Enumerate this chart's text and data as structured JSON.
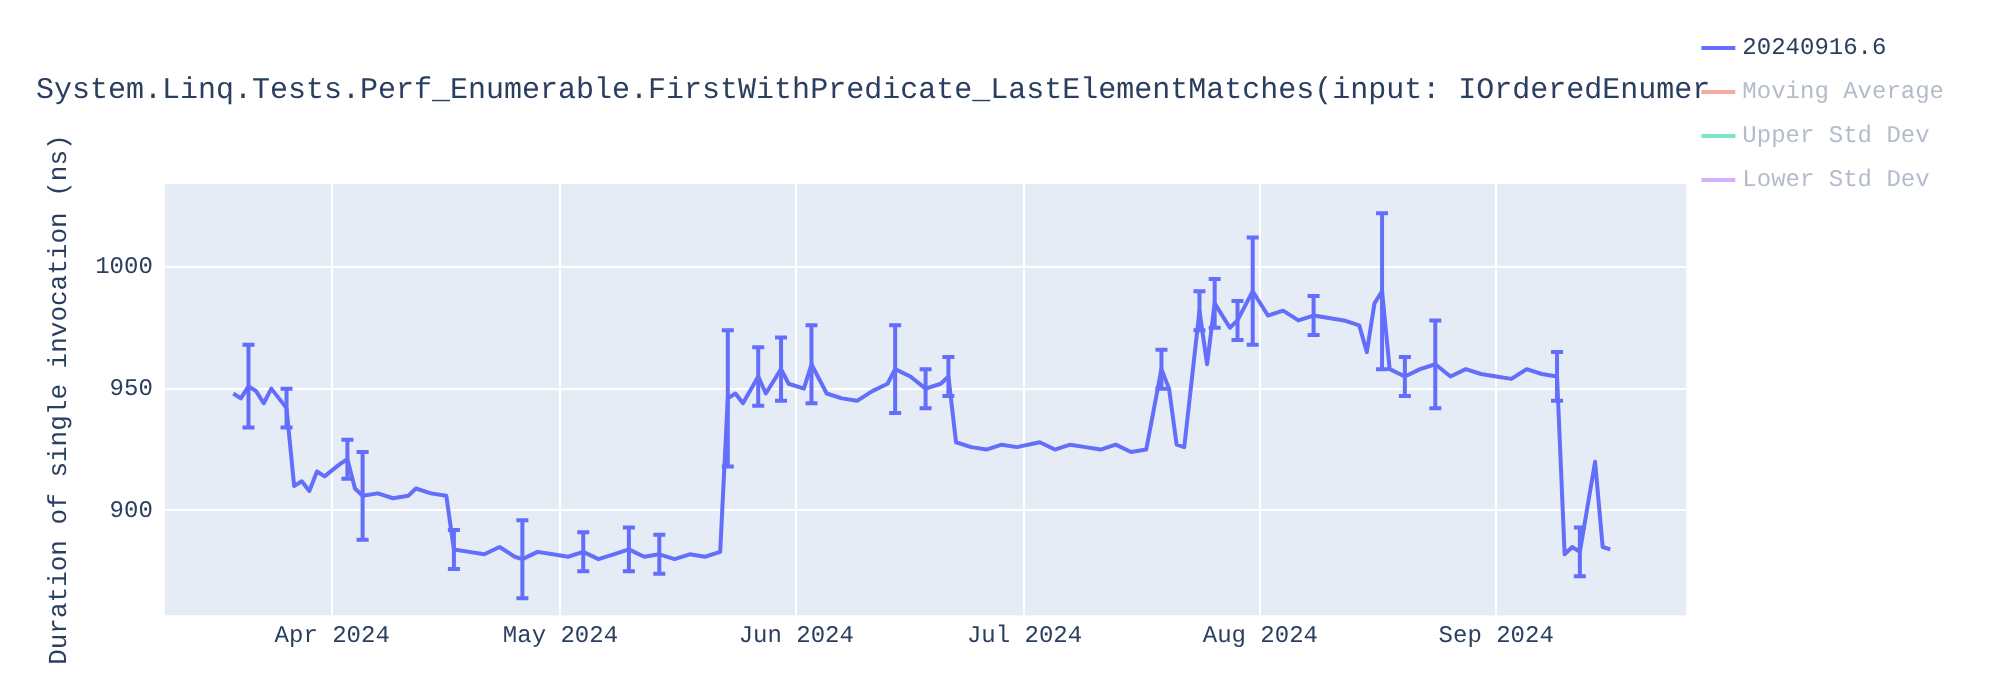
{
  "chart_data": {
    "type": "line",
    "title": "System.Linq.Tests.Perf_Enumerable.FirstWithPredicate_LastElementMatches(input: IOrderedEnumer",
    "ylabel": "Duration of single invocation (ns)",
    "x": [
      "2024-03-19",
      "2024-03-20",
      "2024-03-21",
      "2024-03-22",
      "2024-03-23",
      "2024-03-24",
      "2024-03-25",
      "2024-03-26",
      "2024-03-27",
      "2024-03-28",
      "2024-03-29",
      "2024-03-30",
      "2024-03-31",
      "2024-04-02",
      "2024-04-03",
      "2024-04-04",
      "2024-04-05",
      "2024-04-07",
      "2024-04-09",
      "2024-04-11",
      "2024-04-12",
      "2024-04-14",
      "2024-04-16",
      "2024-04-17",
      "2024-04-19",
      "2024-04-21",
      "2024-04-23",
      "2024-04-25",
      "2024-04-26",
      "2024-04-28",
      "2024-04-30",
      "2024-05-02",
      "2024-05-04",
      "2024-05-06",
      "2024-05-08",
      "2024-05-10",
      "2024-05-12",
      "2024-05-14",
      "2024-05-16",
      "2024-05-18",
      "2024-05-20",
      "2024-05-22",
      "2024-05-23",
      "2024-05-24",
      "2024-05-25",
      "2024-05-27",
      "2024-05-28",
      "2024-05-30",
      "2024-05-31",
      "2024-06-02",
      "2024-06-03",
      "2024-06-05",
      "2024-06-07",
      "2024-06-09",
      "2024-06-11",
      "2024-06-13",
      "2024-06-14",
      "2024-06-16",
      "2024-06-18",
      "2024-06-20",
      "2024-06-21",
      "2024-06-22",
      "2024-06-24",
      "2024-06-26",
      "2024-06-28",
      "2024-06-30",
      "2024-07-03",
      "2024-07-05",
      "2024-07-07",
      "2024-07-09",
      "2024-07-11",
      "2024-07-13",
      "2024-07-15",
      "2024-07-17",
      "2024-07-19",
      "2024-07-20",
      "2024-07-21",
      "2024-07-22",
      "2024-07-24",
      "2024-07-25",
      "2024-07-26",
      "2024-07-28",
      "2024-07-29",
      "2024-07-31",
      "2024-08-02",
      "2024-08-04",
      "2024-08-06",
      "2024-08-08",
      "2024-08-10",
      "2024-08-12",
      "2024-08-14",
      "2024-08-15",
      "2024-08-16",
      "2024-08-17",
      "2024-08-18",
      "2024-08-20",
      "2024-08-22",
      "2024-08-24",
      "2024-08-26",
      "2024-08-28",
      "2024-08-30",
      "2024-09-01",
      "2024-09-03",
      "2024-09-05",
      "2024-09-07",
      "2024-09-09",
      "2024-09-10",
      "2024-09-11",
      "2024-09-12",
      "2024-09-14",
      "2024-09-15",
      "2024-09-16"
    ],
    "series": [
      {
        "name": "20240916.6",
        "color": "#636efa",
        "values": [
          948,
          946,
          951,
          949,
          944,
          950,
          946,
          942,
          910,
          912,
          908,
          916,
          914,
          919,
          921,
          909,
          906,
          907,
          905,
          906,
          909,
          907,
          906,
          884,
          883,
          882,
          885,
          881,
          880,
          883,
          882,
          881,
          883,
          880,
          882,
          884,
          881,
          882,
          880,
          882,
          881,
          883,
          946,
          948,
          944,
          955,
          948,
          958,
          952,
          950,
          960,
          948,
          946,
          945,
          949,
          952,
          958,
          955,
          950,
          952,
          955,
          928,
          926,
          925,
          927,
          926,
          928,
          925,
          927,
          926,
          925,
          927,
          924,
          925,
          958,
          950,
          927,
          926,
          982,
          960,
          985,
          975,
          978,
          990,
          980,
          982,
          978,
          980,
          979,
          978,
          976,
          965,
          985,
          990,
          958,
          955,
          958,
          960,
          955,
          958,
          956,
          955,
          954,
          958,
          956,
          955,
          882,
          885,
          883,
          920,
          885,
          884
        ],
        "errors": [
          null,
          null,
          17,
          null,
          null,
          null,
          null,
          8,
          null,
          null,
          null,
          null,
          null,
          null,
          8,
          null,
          18,
          null,
          null,
          null,
          null,
          null,
          null,
          8,
          null,
          null,
          null,
          null,
          16,
          null,
          null,
          null,
          8,
          null,
          null,
          9,
          null,
          8,
          null,
          null,
          null,
          null,
          28,
          null,
          null,
          12,
          null,
          13,
          null,
          null,
          16,
          null,
          null,
          null,
          null,
          null,
          18,
          null,
          8,
          null,
          8,
          null,
          null,
          null,
          null,
          null,
          null,
          null,
          null,
          null,
          null,
          null,
          null,
          null,
          8,
          null,
          null,
          null,
          8,
          null,
          10,
          null,
          8,
          22,
          null,
          null,
          null,
          8,
          null,
          null,
          null,
          null,
          null,
          32,
          null,
          8,
          null,
          18,
          null,
          null,
          null,
          null,
          null,
          null,
          null,
          10,
          null,
          null,
          10,
          null,
          null,
          null
        ]
      },
      {
        "name": "Moving Average",
        "color": "#ef553b",
        "values": [
          null,
          null,
          null,
          null,
          null,
          null,
          null,
          null,
          null,
          null,
          null,
          null,
          null,
          null,
          null,
          null,
          null,
          null,
          null,
          null,
          null,
          null,
          null,
          null,
          null,
          null,
          null,
          null,
          null,
          null,
          null,
          null,
          null,
          null,
          null,
          null,
          null,
          null,
          null,
          null,
          null,
          null,
          null,
          null,
          null,
          null,
          null,
          null,
          null,
          null,
          null,
          null,
          null,
          null,
          null,
          null,
          null,
          null,
          null,
          null,
          null,
          null,
          null,
          null,
          null,
          null,
          null,
          null,
          null,
          null,
          null,
          null,
          null,
          null,
          null,
          null,
          null,
          null,
          null,
          null,
          null,
          null,
          null,
          null,
          null,
          null,
          null,
          null,
          null,
          null,
          null,
          null,
          null,
          null,
          null,
          null,
          null,
          null,
          null,
          null,
          null,
          null,
          null,
          null,
          null,
          null,
          null,
          null,
          null,
          null,
          null,
          null
        ]
      },
      {
        "name": "Upper Std Dev",
        "color": "#00cc96",
        "values": [
          null,
          null,
          null,
          null,
          null,
          null,
          null,
          null,
          null,
          null,
          null,
          null,
          null,
          null,
          null,
          null,
          null,
          null,
          null,
          null,
          null,
          null,
          null,
          null,
          null,
          null,
          null,
          null,
          null,
          null,
          null,
          null,
          null,
          null,
          null,
          null,
          null,
          null,
          null,
          null,
          null,
          null,
          null,
          null,
          null,
          null,
          null,
          null,
          null,
          null,
          null,
          null,
          null,
          null,
          null,
          null,
          null,
          null,
          null,
          null,
          null,
          null,
          null,
          null,
          null,
          null,
          null,
          null,
          null,
          null,
          null,
          null,
          null,
          null,
          null,
          null,
          null,
          null,
          null,
          null,
          null,
          null,
          null,
          null,
          null,
          null,
          null,
          null,
          null,
          null,
          null,
          null,
          null,
          null,
          null,
          null,
          null,
          null,
          null,
          null,
          null,
          null,
          null,
          null,
          null,
          null,
          null,
          null,
          null,
          null,
          null,
          null
        ]
      },
      {
        "name": "Lower Std Dev",
        "color": "#ab63fa",
        "values": [
          null,
          null,
          null,
          null,
          null,
          null,
          null,
          null,
          null,
          null,
          null,
          null,
          null,
          null,
          null,
          null,
          null,
          null,
          null,
          null,
          null,
          null,
          null,
          null,
          null,
          null,
          null,
          null,
          null,
          null,
          null,
          null,
          null,
          null,
          null,
          null,
          null,
          null,
          null,
          null,
          null,
          null,
          null,
          null,
          null,
          null,
          null,
          null,
          null,
          null,
          null,
          null,
          null,
          null,
          null,
          null,
          null,
          null,
          null,
          null,
          null,
          null,
          null,
          null,
          null,
          null,
          null,
          null,
          null,
          null,
          null,
          null,
          null,
          null,
          null,
          null,
          null,
          null,
          null,
          null,
          null,
          null,
          null,
          null,
          null,
          null,
          null,
          null,
          null,
          null,
          null,
          null,
          null,
          null,
          null,
          null,
          null,
          null,
          null,
          null,
          null,
          null,
          null,
          null,
          null,
          null,
          null,
          null,
          null,
          null,
          null,
          null
        ]
      }
    ],
    "xlim": [
      "2024-03-10",
      "2024-09-26"
    ],
    "xticks": [
      {
        "value": "2024-04-01",
        "label": "Apr 2024"
      },
      {
        "value": "2024-05-01",
        "label": "May 2024"
      },
      {
        "value": "2024-06-01",
        "label": "Jun 2024"
      },
      {
        "value": "2024-07-01",
        "label": "Jul 2024"
      },
      {
        "value": "2024-08-01",
        "label": "Aug 2024"
      },
      {
        "value": "2024-09-01",
        "label": "Sep 2024"
      }
    ],
    "ylim": [
      857,
      1034
    ],
    "yticks": [
      900,
      950,
      1000
    ],
    "grid": true,
    "legend": "right",
    "line_style": "solid"
  }
}
